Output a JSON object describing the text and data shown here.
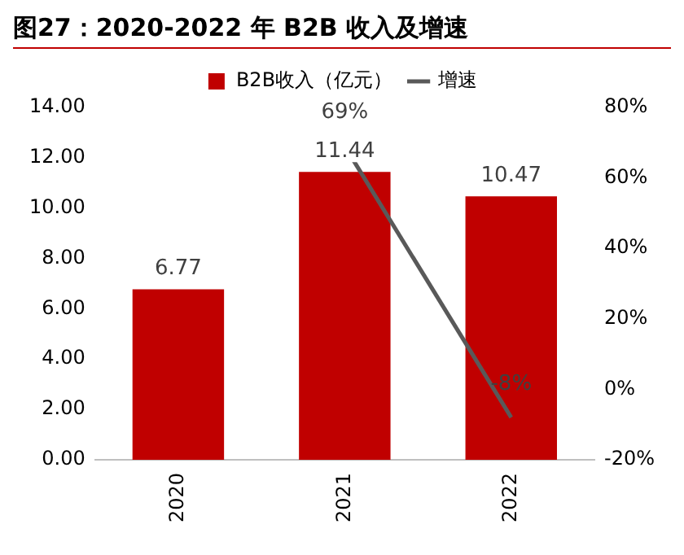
{
  "chart_data": {
    "type": "bar",
    "title": "图27：2020-2022 年 B2B 收入及增速",
    "categories": [
      "2020",
      "2021",
      "2022"
    ],
    "series": [
      {
        "name": "B2B收入（亿元）",
        "color": "#c00000",
        "values": [
          6.77,
          11.44,
          10.47
        ],
        "value_labels": [
          "6.77",
          "11.44",
          "10.47"
        ]
      },
      {
        "name": "增速",
        "type": "line",
        "axis": "y2",
        "color": "#595959",
        "values": [
          null,
          69,
          -8
        ],
        "value_labels": [
          null,
          "69%",
          "-8%"
        ]
      }
    ],
    "ylim": [
      0,
      14
    ],
    "yticks": [
      {
        "value": 0,
        "label": "0.00"
      },
      {
        "value": 2,
        "label": "2.00"
      },
      {
        "value": 4,
        "label": "4.00"
      },
      {
        "value": 6,
        "label": "6.00"
      },
      {
        "value": 8,
        "label": "8.00"
      },
      {
        "value": 10,
        "label": "10.00"
      },
      {
        "value": 12,
        "label": "12.00"
      },
      {
        "value": 14,
        "label": "14.00"
      }
    ],
    "y2lim": [
      -20,
      80
    ],
    "y2ticks": [
      {
        "value": -20,
        "label": "-20%"
      },
      {
        "value": 0,
        "label": "0%"
      },
      {
        "value": 20,
        "label": "20%"
      },
      {
        "value": 40,
        "label": "40%"
      },
      {
        "value": 60,
        "label": "60%"
      },
      {
        "value": 80,
        "label": "80%"
      }
    ],
    "legend": "top",
    "grid": false,
    "line_style": "solid"
  }
}
